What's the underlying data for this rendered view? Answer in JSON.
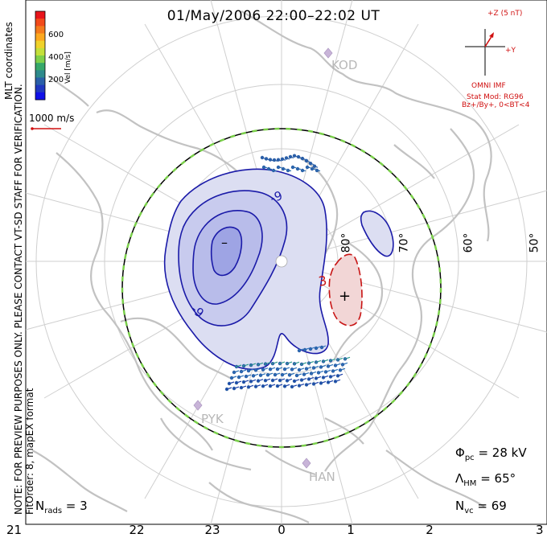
{
  "title": "01/May/2006 22:00–22:02 UT",
  "colorbar": {
    "title": "Vel [m/s]",
    "ticks": [
      "600",
      "400",
      "200"
    ],
    "colors": [
      "#e8141b",
      "#f24a1a",
      "#f47a1c",
      "#fca81f",
      "#f0d22a",
      "#c4e03a",
      "#7fd04a",
      "#36a86a",
      "#2e8a8c",
      "#2a5fa8",
      "#2038c0",
      "#1010e8"
    ]
  },
  "mlt_coordinates_label": "MLT coordinates",
  "velocity_scale_label": "1000 m/s",
  "imf_panel": {
    "bz_label": "+Z (5 nT)",
    "by_label": "+Y",
    "source": "OMNI IMF",
    "stat_mod": "Stat Mod: RG96",
    "condition": "Bz+/By+, 0<BT<4"
  },
  "latitude_labels": [
    "80°",
    "70°",
    "60°",
    "50°"
  ],
  "mlt_labels": [
    "21",
    "22",
    "23",
    "0",
    "1",
    "2",
    "3"
  ],
  "stations": [
    "KOD",
    "PYK",
    "HAN"
  ],
  "contour_labels": {
    "negative_1": "-9",
    "negative_2": "-9",
    "positive": "3",
    "min_marker": "–",
    "max_marker": "+"
  },
  "stats": {
    "phi_pc_symbol": "Φ",
    "phi_pc_sub": "pc",
    "phi_pc_value": " = 28 kV",
    "lambda_hm_symbol": "Λ",
    "lambda_hm_sub": "HM",
    "lambda_hm_value": " = 65°",
    "n_vc_symbol": "N",
    "n_vc_sub": "vc",
    "n_vc_value": " = 69",
    "n_rads_symbol": "N",
    "n_rads_sub": "rads",
    "n_rads_value": " = 3"
  },
  "note_lines": [
    "NOTE: FOR PREVIEW PURPOSES ONLY. PLEASE CONTACT VT-SD STAFF FOR VERIFICATION.",
    "FitOrder: 8, mapEX format"
  ],
  "colors": {
    "negative_fill": "#b4b8e8",
    "negative_fill_light": "#dcdef2",
    "negative_line": "#1a1aa8",
    "positive_fill": "#f2d6d6",
    "positive_line": "#c81414",
    "coast": "#c4c4c4",
    "grid": "#c8c8c8",
    "boundary_dash": "#7ad04a"
  }
}
